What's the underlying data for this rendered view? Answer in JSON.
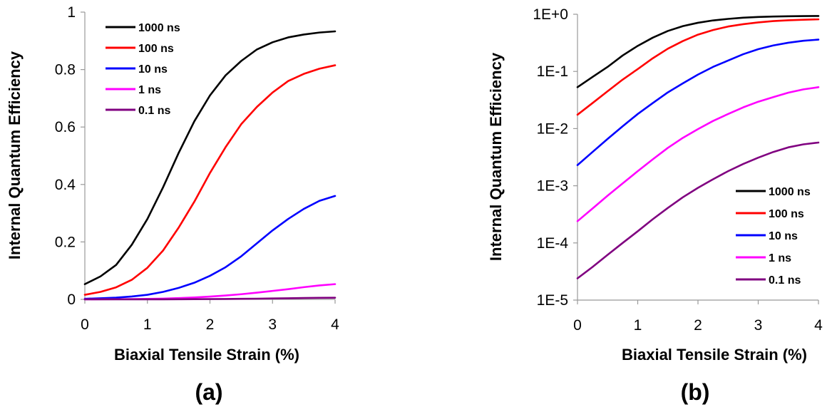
{
  "chart_data": [
    {
      "type": "line",
      "panel_label": "(a)",
      "xlabel": "Biaxial Tensile Strain (%)",
      "ylabel": "Internal Quantum Efficiency",
      "xlim": [
        0,
        4
      ],
      "ylim": [
        0,
        1
      ],
      "yscale": "linear",
      "x_ticks": [
        0,
        1,
        2,
        3,
        4
      ],
      "x_tick_labels": [
        "0",
        "1",
        "2",
        "3",
        "4"
      ],
      "y_ticks": [
        0,
        0.2,
        0.4,
        0.6,
        0.8,
        1
      ],
      "y_tick_labels": [
        "0",
        "0.2",
        "0.4",
        "0.6",
        "0.8",
        "1"
      ],
      "grid": false,
      "legend_position": "top-left",
      "x": [
        0,
        0.25,
        0.5,
        0.75,
        1,
        1.25,
        1.5,
        1.75,
        2,
        2.25,
        2.5,
        2.75,
        3,
        3.25,
        3.5,
        3.75,
        4
      ],
      "series": [
        {
          "name": "1000 ns",
          "color": "#000000",
          "values": [
            0.053,
            0.08,
            0.12,
            0.19,
            0.28,
            0.39,
            0.51,
            0.62,
            0.71,
            0.78,
            0.83,
            0.87,
            0.895,
            0.912,
            0.922,
            0.929,
            0.933
          ]
        },
        {
          "name": "100 ns",
          "color": "#ff0000",
          "values": [
            0.016,
            0.026,
            0.042,
            0.068,
            0.11,
            0.17,
            0.25,
            0.34,
            0.44,
            0.53,
            0.61,
            0.67,
            0.72,
            0.76,
            0.785,
            0.803,
            0.815
          ]
        },
        {
          "name": "10 ns",
          "color": "#0000ff",
          "values": [
            0.002,
            0.004,
            0.006,
            0.01,
            0.016,
            0.026,
            0.04,
            0.058,
            0.082,
            0.112,
            0.15,
            0.195,
            0.24,
            0.28,
            0.315,
            0.343,
            0.36
          ]
        },
        {
          "name": "1 ns",
          "color": "#ff00ff",
          "values": [
            0.0002,
            0.0004,
            0.0006,
            0.001,
            0.0017,
            0.0028,
            0.0044,
            0.0067,
            0.0098,
            0.0136,
            0.018,
            0.0235,
            0.0295,
            0.0355,
            0.0425,
            0.0485,
            0.053
          ]
        },
        {
          "name": "0.1 ns",
          "color": "#800080",
          "values": [
            2e-05,
            4e-05,
            6e-05,
            0.0001,
            0.00017,
            0.00028,
            0.00044,
            0.00067,
            0.00098,
            0.0014,
            0.0019,
            0.0025,
            0.0032,
            0.004,
            0.0048,
            0.0054,
            0.0058
          ]
        }
      ]
    },
    {
      "type": "line",
      "panel_label": "(b)",
      "xlabel": "Biaxial Tensile Strain (%)",
      "ylabel": "Internal Quantum Efficiency",
      "xlim": [
        0,
        4
      ],
      "ylim": [
        1e-05,
        1
      ],
      "yscale": "log",
      "x_ticks": [
        0,
        1,
        2,
        3,
        4
      ],
      "x_tick_labels": [
        "0",
        "1",
        "2",
        "3",
        "4"
      ],
      "y_ticks": [
        1e-05,
        0.0001,
        0.001,
        0.01,
        0.1,
        1
      ],
      "y_tick_labels": [
        "1E-5",
        "1E-4",
        "1E-3",
        "1E-2",
        "1E-1",
        "1E+0"
      ],
      "grid": false,
      "legend_position": "bottom-right",
      "x": [
        0,
        0.25,
        0.5,
        0.75,
        1,
        1.25,
        1.5,
        1.75,
        2,
        2.25,
        2.5,
        2.75,
        3,
        3.25,
        3.5,
        3.75,
        4
      ],
      "series": [
        {
          "name": "1000 ns",
          "color": "#000000",
          "values": [
            0.053,
            0.08,
            0.12,
            0.19,
            0.28,
            0.39,
            0.51,
            0.62,
            0.71,
            0.78,
            0.83,
            0.87,
            0.895,
            0.912,
            0.922,
            0.929,
            0.933
          ]
        },
        {
          "name": "100 ns",
          "color": "#ff0000",
          "values": [
            0.0175,
            0.028,
            0.045,
            0.072,
            0.11,
            0.17,
            0.25,
            0.34,
            0.44,
            0.53,
            0.61,
            0.67,
            0.72,
            0.76,
            0.785,
            0.803,
            0.815
          ]
        },
        {
          "name": "10 ns",
          "color": "#0000ff",
          "values": [
            0.0023,
            0.0039,
            0.0066,
            0.011,
            0.018,
            0.028,
            0.043,
            0.062,
            0.088,
            0.12,
            0.155,
            0.2,
            0.245,
            0.285,
            0.318,
            0.344,
            0.36
          ]
        },
        {
          "name": "1 ns",
          "color": "#ff00ff",
          "values": [
            0.00024,
            0.0004,
            0.00067,
            0.0011,
            0.0018,
            0.0029,
            0.0046,
            0.0069,
            0.0098,
            0.0136,
            0.018,
            0.0235,
            0.0295,
            0.0355,
            0.0425,
            0.0485,
            0.053
          ]
        },
        {
          "name": "0.1 ns",
          "color": "#800080",
          "values": [
            2.4e-05,
            3.8e-05,
            6.2e-05,
            0.0001,
            0.00016,
            0.00026,
            0.00041,
            0.00063,
            0.00092,
            0.0013,
            0.0018,
            0.0024,
            0.0031,
            0.0039,
            0.0047,
            0.0053,
            0.0057
          ]
        }
      ]
    }
  ]
}
